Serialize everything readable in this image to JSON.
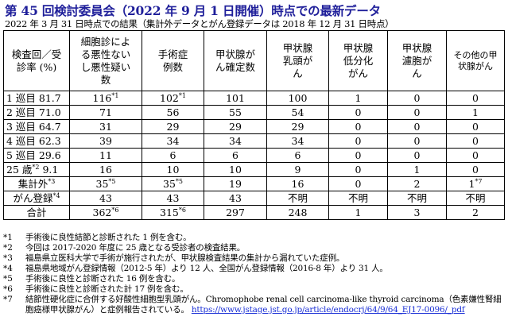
{
  "title": "第 45 回検討委員会（2022 年 9 月 1 日開催）時点での最新データ",
  "subtitle": "2022 年 3 月 31 日時点での結果（集計外データとがん登録データは 2018 年 12 月 31 日時点）",
  "table": {
    "headers": [
      "検査回／受診率 (%)",
      "細胞診による悪性ないし悪性疑い数",
      "手術症例数",
      "甲状腺がん確定数",
      "甲状腺乳頭がん",
      "甲状腺低分化がん",
      "甲状腺濾胞がん",
      "その他の甲状腺がん"
    ],
    "rows": [
      {
        "label": "1 巡目 81.7",
        "label_sup": "",
        "cells": [
          {
            "v": "116",
            "sup": "*1"
          },
          {
            "v": "102",
            "sup": "*1"
          },
          {
            "v": "101",
            "sup": ""
          },
          {
            "v": "100",
            "sup": ""
          },
          {
            "v": "1",
            "sup": ""
          },
          {
            "v": "0",
            "sup": ""
          },
          {
            "v": "0",
            "sup": ""
          }
        ]
      },
      {
        "label": "2 巡目 71.0",
        "label_sup": "",
        "cells": [
          {
            "v": "71",
            "sup": ""
          },
          {
            "v": "56",
            "sup": ""
          },
          {
            "v": "55",
            "sup": ""
          },
          {
            "v": "54",
            "sup": ""
          },
          {
            "v": "0",
            "sup": ""
          },
          {
            "v": "0",
            "sup": ""
          },
          {
            "v": "1",
            "sup": ""
          }
        ]
      },
      {
        "label": "3 巡目 64.7",
        "label_sup": "",
        "cells": [
          {
            "v": "31",
            "sup": ""
          },
          {
            "v": "29",
            "sup": ""
          },
          {
            "v": "29",
            "sup": ""
          },
          {
            "v": "29",
            "sup": ""
          },
          {
            "v": "0",
            "sup": ""
          },
          {
            "v": "0",
            "sup": ""
          },
          {
            "v": "0",
            "sup": ""
          }
        ]
      },
      {
        "label": "4 巡目 62.3",
        "label_sup": "",
        "cells": [
          {
            "v": "39",
            "sup": ""
          },
          {
            "v": "34",
            "sup": ""
          },
          {
            "v": "34",
            "sup": ""
          },
          {
            "v": "34",
            "sup": ""
          },
          {
            "v": "0",
            "sup": ""
          },
          {
            "v": "0",
            "sup": ""
          },
          {
            "v": "0",
            "sup": ""
          }
        ]
      },
      {
        "label": "5 巡目 29.6",
        "label_sup": "",
        "cells": [
          {
            "v": "11",
            "sup": ""
          },
          {
            "v": "6",
            "sup": ""
          },
          {
            "v": "6",
            "sup": ""
          },
          {
            "v": "6",
            "sup": ""
          },
          {
            "v": "0",
            "sup": ""
          },
          {
            "v": "0",
            "sup": ""
          },
          {
            "v": "0",
            "sup": ""
          }
        ]
      },
      {
        "label": "25 歳",
        "label_sup": "*2",
        "label_suffix": " 9.1",
        "cells": [
          {
            "v": "16",
            "sup": ""
          },
          {
            "v": "10",
            "sup": ""
          },
          {
            "v": "10",
            "sup": ""
          },
          {
            "v": "9",
            "sup": ""
          },
          {
            "v": "0",
            "sup": ""
          },
          {
            "v": "1",
            "sup": ""
          },
          {
            "v": "0",
            "sup": ""
          }
        ]
      },
      {
        "label": "集計外",
        "label_sup": "*3",
        "centered": true,
        "cells": [
          {
            "v": "35",
            "sup": "*5"
          },
          {
            "v": "35",
            "sup": "*5"
          },
          {
            "v": "19",
            "sup": ""
          },
          {
            "v": "16",
            "sup": ""
          },
          {
            "v": "0",
            "sup": ""
          },
          {
            "v": "2",
            "sup": ""
          },
          {
            "v": "1",
            "sup": "*7"
          }
        ]
      },
      {
        "label": "がん登録",
        "label_sup": "*4",
        "centered": true,
        "cells": [
          {
            "v": "43",
            "sup": ""
          },
          {
            "v": "43",
            "sup": ""
          },
          {
            "v": "43",
            "sup": ""
          },
          {
            "v": "不明",
            "sup": ""
          },
          {
            "v": "不明",
            "sup": ""
          },
          {
            "v": "不明",
            "sup": ""
          },
          {
            "v": "不明",
            "sup": ""
          }
        ]
      },
      {
        "label": "合計",
        "label_sup": "",
        "centered": true,
        "cells": [
          {
            "v": "362",
            "sup": "*6"
          },
          {
            "v": "315",
            "sup": "*6"
          },
          {
            "v": "297",
            "sup": ""
          },
          {
            "v": "248",
            "sup": ""
          },
          {
            "v": "1",
            "sup": ""
          },
          {
            "v": "3",
            "sup": ""
          },
          {
            "v": "2",
            "sup": ""
          }
        ]
      }
    ]
  },
  "footnotes": [
    {
      "mark": "*1",
      "text": "手術後に良性結節と診断された 1 例を含む。"
    },
    {
      "mark": "*2",
      "text": "今回は 2017-2020 年度に 25 歳となる受診者の検査結果。"
    },
    {
      "mark": "*3",
      "text": "福島県立医科大学で手術が施行されたが、甲状腺検査結果の集計から漏れていた症例。"
    },
    {
      "mark": "*4",
      "text": "福島県地域がん登録情報（2012-5 年）より 12 人、全国がん登録情報（2016-8 年）より 31 人。"
    },
    {
      "mark": "*5",
      "text": "手術後に良性と診断された 16 例を含む。"
    },
    {
      "mark": "*6",
      "text": "手術後に良性と診断された計 17 例を含む。"
    },
    {
      "mark": "*7",
      "text": "結節性硬化症に合併する好酸性細胞型乳頭がん。Chromophobe renal cell carcinoma-like thyroid carcinoma（色素嫌性腎細胞癌様甲状腺がん）と症例報告されている。",
      "link": "https://www.jstage.jst.go.jp/article/endocrj/64/9/64_EJ17-0096/_pdf"
    }
  ]
}
